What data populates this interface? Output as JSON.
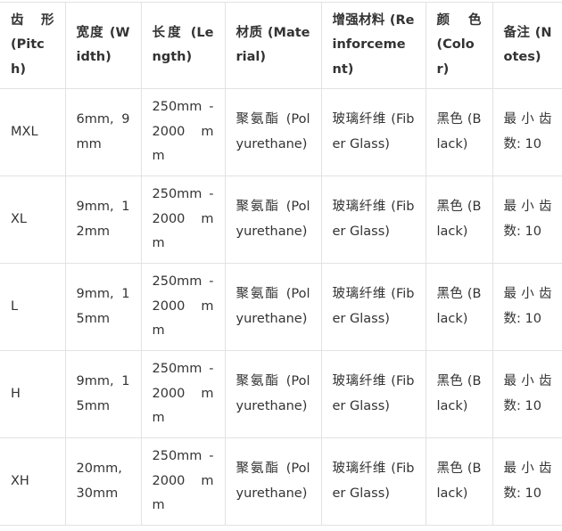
{
  "columns": [
    "齿形 (Pitch)",
    "宽度 (Width)",
    "长度 (Length)",
    "材质 (Material)",
    "增强材料 (Reinforcement)",
    "颜色 (Color)",
    "备注 (Notes)"
  ],
  "rows": [
    [
      "MXL",
      "6mm, 9mm",
      "250mm - 2000 mm",
      "聚氨酯 (Polyurethane)",
      "玻璃纤维 (Fiber Glass)",
      "黑色 (Black)",
      "最小齿数: 10"
    ],
    [
      "XL",
      "9mm, 12mm",
      "250mm - 2000 mm",
      "聚氨酯 (Polyurethane)",
      "玻璃纤维 (Fiber Glass)",
      "黑色 (Black)",
      "最小齿数: 10"
    ],
    [
      "L",
      "9mm, 15mm",
      "250mm - 2000 mm",
      "聚氨酯 (Polyurethane)",
      "玻璃纤维 (Fiber Glass)",
      "黑色 (Black)",
      "最小齿数: 10"
    ],
    [
      "H",
      "9mm, 15mm",
      "250mm - 2000 mm",
      "聚氨酯 (Polyurethane)",
      "玻璃纤维 (Fiber Glass)",
      "黑色 (Black)",
      "最小齿数: 10"
    ],
    [
      "XH",
      "20mm, 30mm",
      "250mm - 2000 mm",
      "聚氨酯 (Polyurethane)",
      "玻璃纤维 (Fiber Glass)",
      "黑色 (Black)",
      "最小齿数: 10"
    ]
  ]
}
